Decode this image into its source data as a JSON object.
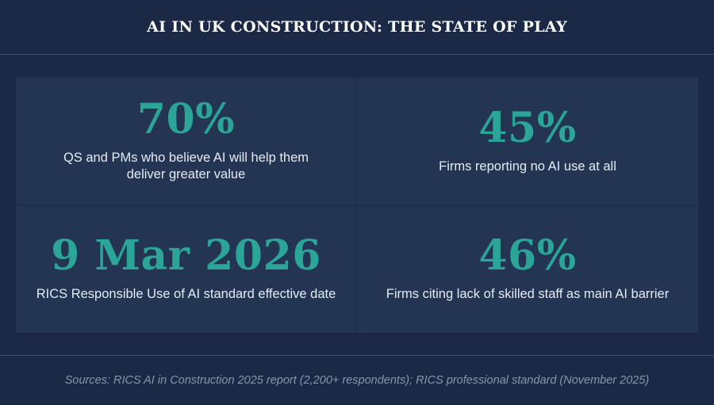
{
  "title": "AI IN UK CONSTRUCTION: THE STATE OF PLAY",
  "stats": [
    {
      "value": "70%",
      "label": "QS and PMs who believe AI will help them deliver greater value"
    },
    {
      "value": "45%",
      "label": "Firms reporting no AI use at all"
    },
    {
      "value": "9 Mar 2026",
      "label": "RICS Responsible Use of AI standard effective date"
    },
    {
      "value": "46%",
      "label": "Firms citing lack of skilled staff as main AI barrier"
    }
  ],
  "footer": "Sources: RICS AI in Construction 2025 report (2,200+ respondents); RICS professional standard (November 2025)",
  "colors": {
    "background": "#1b2846",
    "panel": "#243553",
    "accent": "#2aa597",
    "text": "#e6ebf3",
    "muted": "#8a95a8"
  }
}
